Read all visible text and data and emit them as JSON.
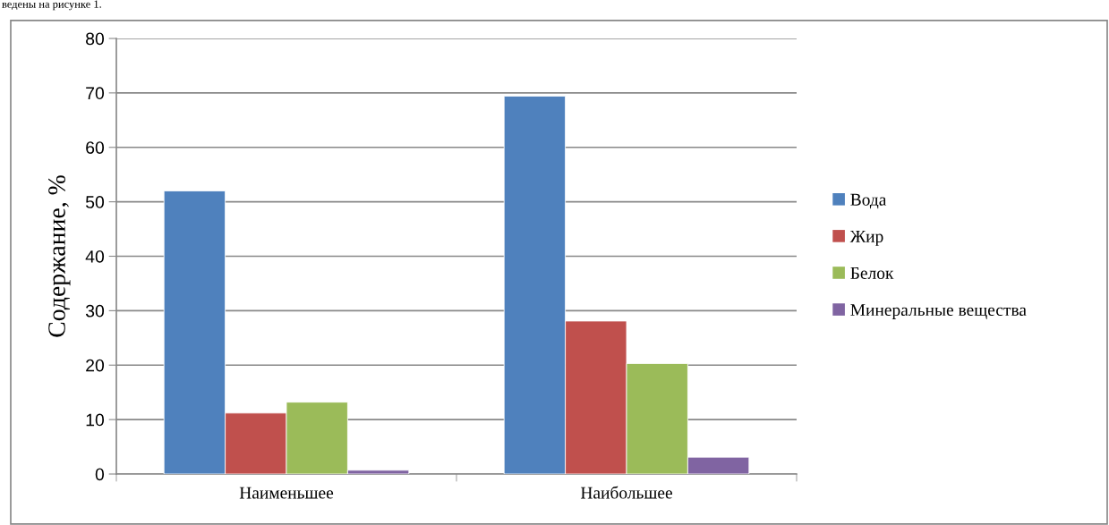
{
  "chart_data": {
    "type": "bar",
    "ylabel": "Содержание, %",
    "categories": [
      "Наименьшее",
      "Наибольшее"
    ],
    "series": [
      {
        "name": "Вода",
        "color": "#4f81bd",
        "values": [
          52.0,
          69.4
        ]
      },
      {
        "name": "Жир",
        "color": "#c0504d",
        "values": [
          11.2,
          28.1
        ]
      },
      {
        "name": "Белок",
        "color": "#9bbb59",
        "values": [
          13.2,
          20.3
        ]
      },
      {
        "name": "Минеральные вещества",
        "color": "#8064a2",
        "values": [
          0.7,
          3.1
        ]
      }
    ],
    "ylim": [
      0,
      80
    ],
    "yticks": [
      0,
      10,
      20,
      30,
      40,
      50,
      60,
      70,
      80
    ],
    "grid": "y",
    "legend": "right",
    "annotations": [
      "ведены на рисунке 1."
    ]
  }
}
